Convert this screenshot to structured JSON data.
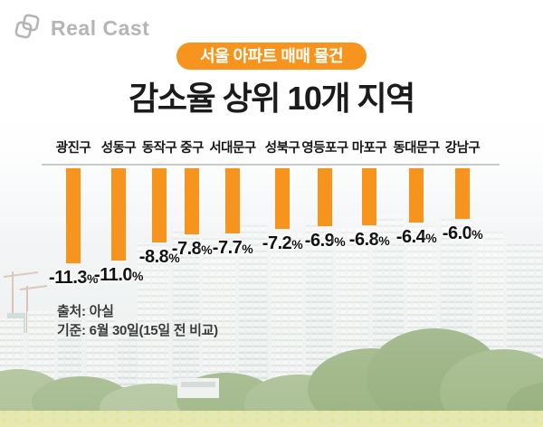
{
  "logo": {
    "text": "Real Cast"
  },
  "header": {
    "badge": "서울 아파트 매매 물건",
    "title": "감소율 상위 10개 지역"
  },
  "source": {
    "line1": "출처: 아실",
    "line2": "기준: 6월 30일(15일 전 비교)"
  },
  "colors": {
    "bar": "#F7941E",
    "badge": "#F7941E",
    "baseline": "#cbcbcb",
    "logo": "#b5b5b5"
  },
  "chart_data": {
    "type": "bar",
    "direction": "downward-hanging",
    "title": "감소율 상위 10개 지역",
    "subtitle_badge": "서울 아파트 매매 물건",
    "categories": [
      "광진구",
      "성동구",
      "동작구",
      "중구",
      "서대문구",
      "성북구",
      "영등포구",
      "마포구",
      "동대문구",
      "강남구"
    ],
    "values": [
      -11.3,
      -11.0,
      -8.8,
      -7.8,
      -7.7,
      -7.2,
      -6.9,
      -6.8,
      -6.4,
      -6.0
    ],
    "value_labels": [
      "-11.3%",
      "-11.0%",
      "-8.8%",
      "-7.8%",
      "-7.7%",
      "-7.2%",
      "-6.9%",
      "-6.8%",
      "-6.4%",
      "-6.0%"
    ],
    "unit": "%",
    "ylim": [
      -12,
      0
    ],
    "grid": false,
    "legend": false
  }
}
